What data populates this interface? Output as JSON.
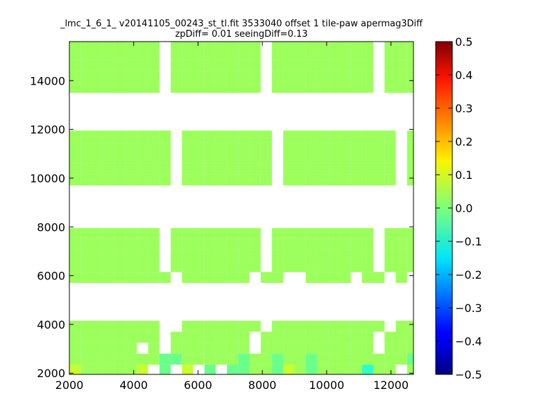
{
  "chart_data": {
    "type": "heatmap",
    "title_lines": [
      "_lmc_1_6_1_ v20141105_00243_st_tl.fit 3533040 offset 1 tile-paw apermag3Diff",
      "zpDiff= 0.01 seeingDiff=0.13"
    ],
    "xlim": [
      2000,
      12700
    ],
    "ylim": [
      1950,
      15600
    ],
    "x_ticks": [
      2000,
      4000,
      6000,
      8000,
      10000,
      12000
    ],
    "y_ticks": [
      2000,
      4000,
      6000,
      8000,
      10000,
      12000,
      14000
    ],
    "colorbar": {
      "colormap": "jet",
      "range": [
        -0.5,
        0.5
      ],
      "ticks": [
        "0.5",
        "0.4",
        "0.3",
        "0.2",
        "0.1",
        "0.0",
        "−0.1",
        "−0.2",
        "−0.3",
        "−0.4",
        "−0.5"
      ],
      "tick_values": [
        0.5,
        0.4,
        0.3,
        0.2,
        0.1,
        0.0,
        -0.1,
        -0.2,
        -0.3,
        -0.4,
        -0.5
      ]
    },
    "grid": false,
    "cell_size": [
      350,
      450
    ],
    "x_columns": [
      2175,
      2525,
      2875,
      3225,
      3575,
      3925,
      4275,
      4625,
      4975,
      5325,
      5675,
      6025,
      6375,
      6725,
      7075,
      7425,
      7775,
      8125,
      8475,
      8825,
      9175,
      9525,
      9875,
      10225,
      10575,
      10925,
      11275,
      11625,
      11975,
      12325,
      12675
    ],
    "y_rows": [
      2125,
      2575,
      3025,
      3475,
      3925,
      5925,
      6375,
      6825,
      7275,
      7725,
      9925,
      10375,
      10825,
      11275,
      11725,
      13725,
      14175,
      14625,
      15075,
      15525
    ],
    "rows": [
      "+ggggg+ - + - --gg-+g-ggggcgg g g--+",
      "gggggggg--ggggg-gg-gg-gggggggg--g--g--",
      "gggggg g ggggggg gggggggggg gggg--g--",
      "gggggggg ggggggg gggggggggg gggg--g",
      "gggggggg  ggggggg gggggggggg gggg  g",
      "ggggggggg gggggg gg  gggg gg g",
      "gggggggg gggggggg ggggggggg ggggg-g",
      "gggggggg gggggggg ggggggggg ggggg-g",
      "gggggggg gggggggg ggggggggg ggggg-g",
      "gggggggg gggggggg ggggggggg ggggg-g",
      "ggggggggg gggggggg gggggggggg g g--g",
      "ggggggggg gggggggg gggggggggg gggg-g",
      "ggggggggg gggggggg gggggggggg gggg-g",
      "ggggggggg gggggggg gggggggggg gggg-g",
      "ggggggggg gggggggg gggggggggg gggg--g",
      "gggggggg gggggggg ggggggggg gggg-g",
      "gggggggg gggggggg ggggggggg ggggg-g",
      "gggggggg gggggggg ggggggggg ggggg-g",
      "gggggggg gggggggg ggggggggg ggggg-g",
      "gggggggg gggggggg ggggggggg ggggg-g"
    ]
  }
}
